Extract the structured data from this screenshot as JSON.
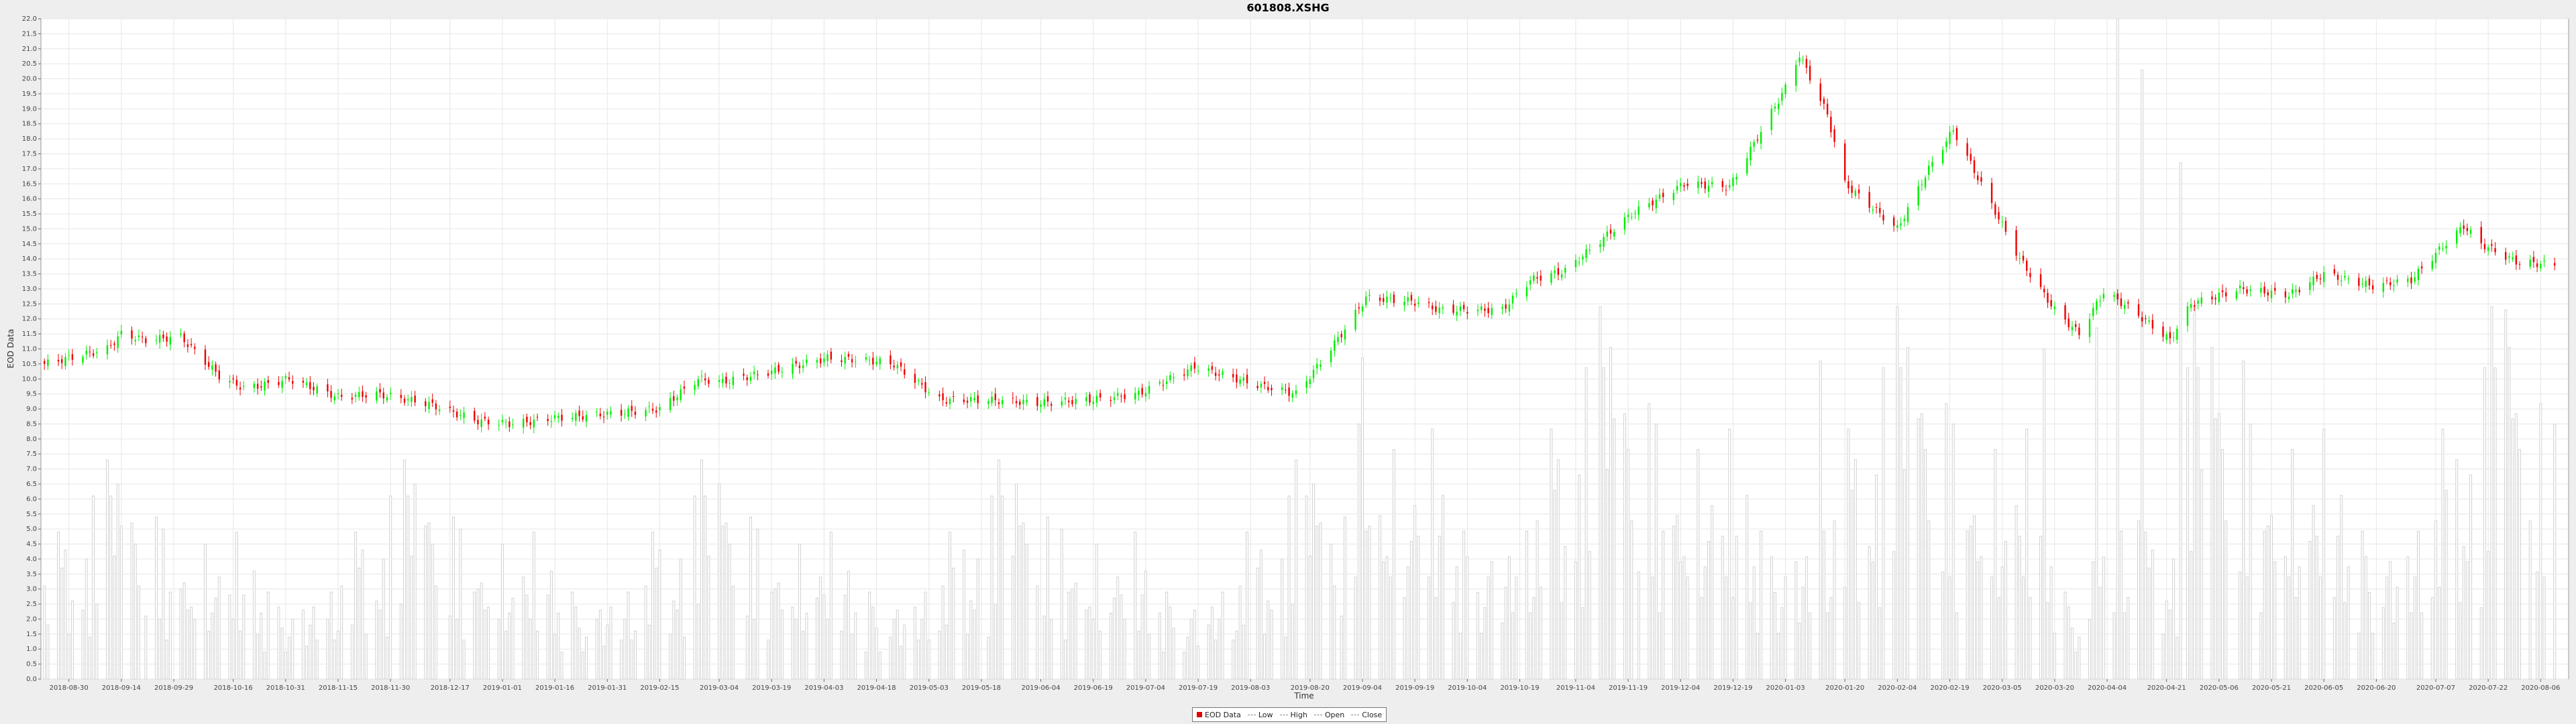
{
  "chart_data": {
    "type": "candlestick",
    "title": "601808.XSHG",
    "xlabel": "Time",
    "ylabel": "EOD Data",
    "ylim": [
      0,
      22
    ],
    "y_ticks": [
      "0.0",
      "0.5",
      "1.0",
      "1.5",
      "2.0",
      "2.5",
      "3.0",
      "3.5",
      "4.0",
      "4.5",
      "5.0",
      "5.5",
      "6.0",
      "6.5",
      "7.0",
      "7.5",
      "8.0",
      "8.5",
      "9.0",
      "9.5",
      "10.0",
      "10.5",
      "11.0",
      "11.5",
      "12.0",
      "12.5",
      "13.0",
      "13.5",
      "14.0",
      "14.5",
      "15.0",
      "15.5",
      "16.0",
      "16.5",
      "17.0",
      "17.5",
      "18.0",
      "18.5",
      "19.0",
      "19.5",
      "20.0",
      "20.5",
      "21.0",
      "21.5",
      "22.0"
    ],
    "x_ticks": [
      "2018-08-30",
      "2018-09-14",
      "2018-09-29",
      "2018-10-16",
      "2018-10-31",
      "2018-11-15",
      "2018-11-30",
      "2018-12-17",
      "2019-01-01",
      "2019-01-16",
      "2019-01-31",
      "2019-02-15",
      "2019-03-04",
      "2019-03-19",
      "2019-04-03",
      "2019-04-18",
      "2019-05-03",
      "2019-05-18",
      "2019-06-04",
      "2019-06-19",
      "2019-07-04",
      "2019-07-19",
      "2019-08-03",
      "2019-08-20",
      "2019-09-04",
      "2019-09-19",
      "2019-10-04",
      "2019-10-19",
      "2019-11-04",
      "2019-11-19",
      "2019-12-04",
      "2019-12-19",
      "2020-01-03",
      "2020-01-20",
      "2020-02-04",
      "2020-02-19",
      "2020-03-05",
      "2020-03-20",
      "2020-04-04",
      "2020-04-21",
      "2020-05-06",
      "2020-05-21",
      "2020-06-05",
      "2020-06-20",
      "2020-07-07",
      "2020-07-22",
      "2020-08-06"
    ],
    "x_range": [
      "2018-08-22",
      "2020-08-14"
    ],
    "grid": true,
    "legend_position": "bottom-center",
    "up_color": "#00ee00",
    "down_color": "#ee0000",
    "volume_color": "#d2d2d2",
    "series": [
      {
        "name": "Close",
        "x": [
          "2018-08-23",
          "2018-09-10",
          "2018-09-14",
          "2018-09-21",
          "2018-10-01",
          "2018-10-12",
          "2018-10-19",
          "2018-10-25",
          "2018-11-01",
          "2018-11-15",
          "2018-11-26",
          "2018-12-10",
          "2018-12-25",
          "2019-01-04",
          "2019-01-16",
          "2019-01-28",
          "2019-02-15",
          "2019-02-26",
          "2019-03-05",
          "2019-03-21",
          "2019-04-04",
          "2019-04-17",
          "2019-04-23",
          "2019-05-06",
          "2019-05-20",
          "2019-06-03",
          "2019-06-18",
          "2019-07-02",
          "2019-07-18",
          "2019-08-05",
          "2019-08-16",
          "2019-08-22",
          "2019-08-29",
          "2019-09-05",
          "2019-09-18",
          "2019-09-26",
          "2019-10-14",
          "2019-10-22",
          "2019-11-01",
          "2019-11-13",
          "2019-11-20",
          "2019-12-05",
          "2019-12-18",
          "2020-01-03",
          "2020-01-07",
          "2020-01-15",
          "2020-01-20",
          "2020-02-04",
          "2020-02-13",
          "2020-02-20",
          "2020-03-02",
          "2020-03-10",
          "2020-03-20",
          "2020-03-27",
          "2020-04-03",
          "2020-04-10",
          "2020-04-22",
          "2020-04-28",
          "2020-05-12",
          "2020-05-26",
          "2020-06-05",
          "2020-06-19",
          "2020-06-30",
          "2020-07-08",
          "2020-07-15",
          "2020-07-20",
          "2020-07-30",
          "2020-08-10"
        ],
        "values": [
          10.5,
          11.0,
          11.5,
          11.3,
          11.4,
          10.1,
          9.7,
          9.8,
          10.0,
          9.4,
          9.5,
          9.2,
          8.6,
          8.5,
          8.7,
          8.8,
          9.0,
          10.0,
          9.9,
          10.3,
          10.7,
          10.6,
          10.5,
          9.3,
          9.3,
          9.2,
          9.3,
          9.5,
          10.4,
          9.8,
          9.5,
          10.4,
          11.5,
          12.7,
          12.6,
          12.3,
          12.3,
          13.3,
          13.6,
          14.8,
          15.5,
          16.5,
          16.4,
          19.7,
          20.8,
          18.8,
          16.5,
          15.0,
          17.0,
          18.3,
          15.8,
          14.0,
          12.3,
          11.5,
          12.9,
          12.4,
          11.3,
          12.5,
          13.0,
          12.8,
          13.5,
          13.1,
          13.3,
          14.3,
          15.1,
          14.5,
          13.9,
          13.8
        ]
      }
    ],
    "volume_label": "",
    "volume_pattern": [
      3.1,
      1.8,
      4.9,
      3.7,
      4.3,
      1.5,
      2.6,
      2.3,
      4.0,
      1.4,
      6.1,
      2.5,
      7.3,
      6.1,
      4.1,
      6.5,
      5.1,
      5.2,
      4.5,
      3.1,
      0.0,
      2.1,
      5.4,
      2.0,
      5.0,
      1.3,
      2.9,
      3.0,
      3.2,
      2.3,
      2.4,
      2.0,
      4.5,
      1.6,
      2.2,
      2.7,
      3.4,
      2.8,
      2.0,
      4.9,
      1.6,
      2.8,
      3.6,
      1.5,
      2.2,
      0.9,
      2.9,
      2.4,
      1.7,
      0.9,
      1.4,
      2.0,
      2.3,
      1.1,
      1.8,
      2.4,
      1.3,
      2.0,
      2.9,
      1.3,
      1.6
    ],
    "volume_spikes": [
      {
        "x": "2020-04-07",
        "v": 22.0
      },
      {
        "x": "2020-04-14",
        "v": 20.3
      },
      {
        "x": "2020-04-25",
        "v": 17.2
      },
      {
        "x": "2019-09-04",
        "v": 10.7
      },
      {
        "x": "2020-01-13",
        "v": 10.6
      },
      {
        "x": "2020-03-17",
        "v": 11.0
      },
      {
        "x": "2020-04-01",
        "v": 11.7
      },
      {
        "x": "2020-05-13",
        "v": 10.6
      },
      {
        "x": "2020-07-27",
        "v": 12.3
      }
    ]
  }
}
